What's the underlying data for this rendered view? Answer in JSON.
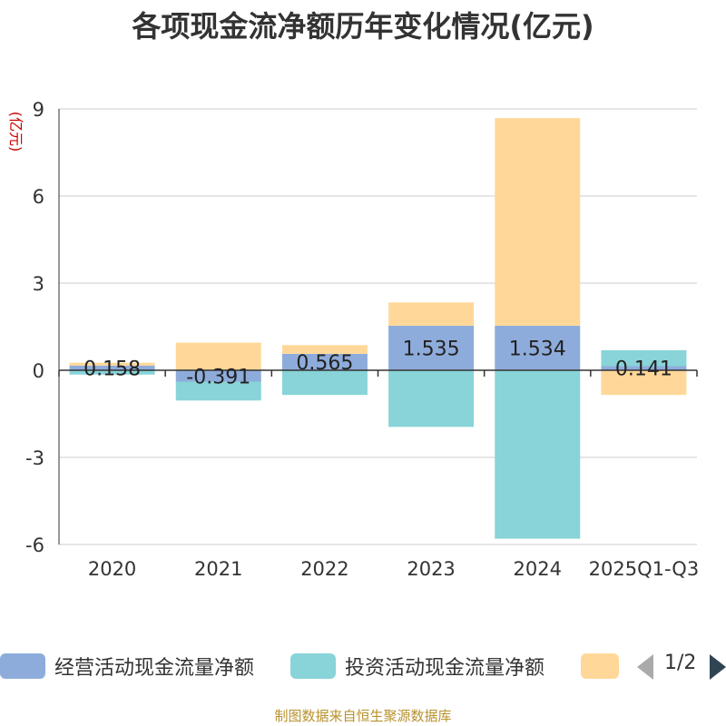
{
  "chart_data": {
    "type": "bar",
    "stacked": true,
    "title": "各项现金流净额历年变化情况(亿元)",
    "ylabel": "(亿元)",
    "ylim": [
      -6,
      9
    ],
    "yticks": [
      -6,
      -3,
      0,
      3,
      6,
      9
    ],
    "categories": [
      "2020",
      "2021",
      "2022",
      "2023",
      "2024",
      "2025Q1-Q3"
    ],
    "series": [
      {
        "name": "经营活动现金流量净额",
        "color": "#8eacdb",
        "values": [
          0.158,
          -0.391,
          0.565,
          1.535,
          1.534,
          0.141
        ]
      },
      {
        "name": "投资活动现金流量净额",
        "color": "#88d4d8",
        "values": [
          -0.15,
          -0.65,
          -0.85,
          -1.95,
          -5.8,
          0.55
        ]
      },
      {
        "name": "",
        "color": "#ffd899",
        "values": [
          0.1,
          0.95,
          0.3,
          0.8,
          7.15,
          -0.85
        ]
      }
    ],
    "data_labels": [
      "0.158",
      "-0.391",
      "0.565",
      "1.535",
      "1.534",
      "0.141"
    ],
    "legend_position": "bottom"
  },
  "legend": {
    "items": [
      {
        "label": "经营活动现金流量净额",
        "color": "#8eacdb"
      },
      {
        "label": "投资活动现金流量净额",
        "color": "#88d4d8"
      },
      {
        "label": "",
        "color": "#ffd899"
      }
    ],
    "page_text": "1/2"
  },
  "source_note": "制图数据来自恒生聚源数据库"
}
